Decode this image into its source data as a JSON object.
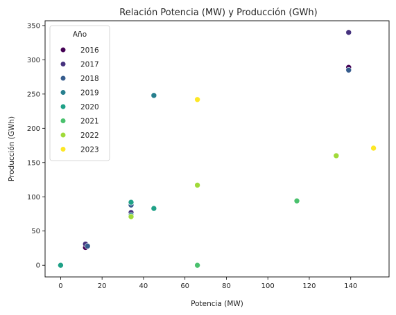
{
  "chart_data": {
    "type": "scatter",
    "title": "Relación Potencia (MW) y Producción (GWh)",
    "xlabel": "Potencia (MW)",
    "ylabel": "Producción (GWh)",
    "xlim": [
      -7.5,
      158.5
    ],
    "ylim": [
      -17,
      357
    ],
    "xticks": [
      "0",
      "20",
      "40",
      "60",
      "80",
      "100",
      "120",
      "140"
    ],
    "yticks": [
      "0",
      "50",
      "100",
      "150",
      "200",
      "250",
      "300",
      "350"
    ],
    "legend": {
      "title": "Año",
      "placement": "upper-left"
    },
    "grid": false,
    "series": [
      {
        "name": "2016",
        "color": "#440154",
        "points": [
          [
            12,
            26
          ],
          [
            34,
            75
          ],
          [
            139,
            289
          ]
        ]
      },
      {
        "name": "2017",
        "color": "#46327e",
        "points": [
          [
            12,
            31
          ],
          [
            34,
            77
          ],
          [
            139,
            340
          ]
        ]
      },
      {
        "name": "2018",
        "color": "#365c8d",
        "points": [
          [
            13,
            28
          ],
          [
            34,
            88
          ],
          [
            139,
            285
          ]
        ]
      },
      {
        "name": "2019",
        "color": "#277f8e",
        "points": [
          [
            34,
            73
          ],
          [
            45,
            248
          ]
        ]
      },
      {
        "name": "2020",
        "color": "#1fa187",
        "points": [
          [
            0,
            0
          ],
          [
            34,
            92
          ],
          [
            45,
            83
          ]
        ]
      },
      {
        "name": "2021",
        "color": "#4ac16d",
        "points": [
          [
            66,
            0
          ],
          [
            114,
            94
          ]
        ]
      },
      {
        "name": "2022",
        "color": "#a0da39",
        "points": [
          [
            34,
            71
          ],
          [
            66,
            117
          ],
          [
            133,
            160
          ]
        ]
      },
      {
        "name": "2023",
        "color": "#fde725",
        "points": [
          [
            66,
            242
          ],
          [
            151,
            171
          ]
        ]
      }
    ]
  }
}
